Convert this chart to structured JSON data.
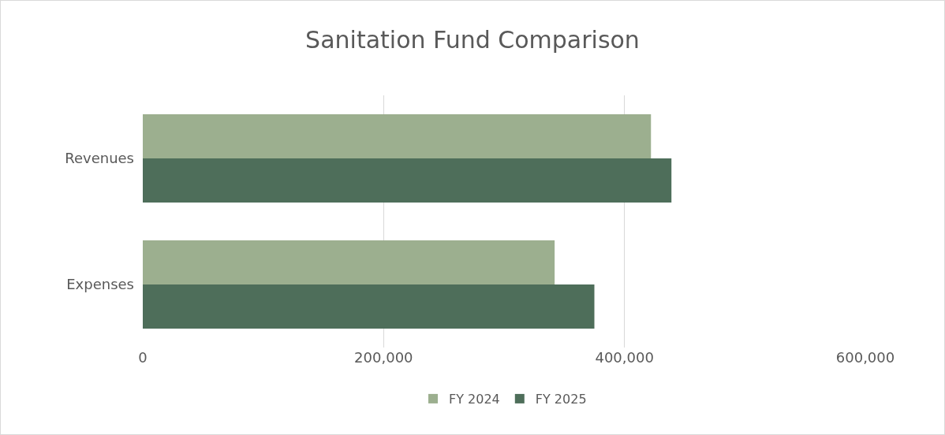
{
  "chart_data": {
    "type": "bar",
    "title": "Sanitation Fund Comparison",
    "orientation": "horizontal",
    "categories": [
      "Revenues",
      "Expenses"
    ],
    "series": [
      {
        "name": "FY 2024",
        "color": "#9caf8f",
        "values": [
          422000,
          342000
        ]
      },
      {
        "name": "FY 2025",
        "color": "#4e6e5a",
        "values": [
          439000,
          375000
        ]
      }
    ],
    "xlim": [
      0,
      600000
    ],
    "xticks": [
      {
        "value": 0,
        "label": "0"
      },
      {
        "value": 200000,
        "label": "200,000"
      },
      {
        "value": 400000,
        "label": "400,000"
      },
      {
        "value": 600000,
        "label": "600,000"
      }
    ],
    "grid": "x",
    "legend": "bottom"
  }
}
